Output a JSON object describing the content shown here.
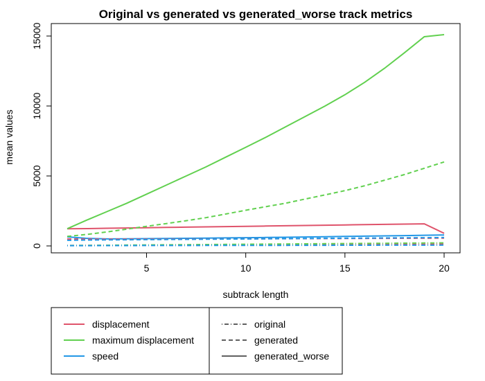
{
  "chart_data": {
    "type": "line",
    "title": "Original vs generated vs generated_worse track metrics",
    "xlabel": "subtrack length",
    "ylabel": "mean values",
    "xlim": [
      1,
      20
    ],
    "ylim": [
      0,
      15000
    ],
    "x_ticks": [
      5,
      10,
      15,
      20
    ],
    "y_ticks": [
      0,
      5000,
      10000,
      15000
    ],
    "grid": false,
    "metric_legend": [
      {
        "label": "displacement",
        "color": "#DF536B"
      },
      {
        "label": "maximum displacement",
        "color": "#61D04F"
      },
      {
        "label": "speed",
        "color": "#2297E6"
      }
    ],
    "source_legend": [
      {
        "label": "original",
        "dash": "dotdash"
      },
      {
        "label": "generated",
        "dash": "dashed"
      },
      {
        "label": "generated_worse",
        "dash": "solid"
      }
    ],
    "x": [
      1,
      2,
      3,
      4,
      5,
      6,
      7,
      8,
      9,
      10,
      11,
      12,
      13,
      14,
      15,
      16,
      17,
      18,
      19,
      20
    ],
    "series": [
      {
        "metric": "displacement",
        "source": "generated_worse",
        "values": [
          1230,
          1240,
          1260,
          1280,
          1300,
          1320,
          1340,
          1360,
          1380,
          1400,
          1420,
          1440,
          1460,
          1480,
          1500,
          1520,
          1540,
          1560,
          1580,
          900
        ]
      },
      {
        "metric": "maximum displacement",
        "source": "generated_worse",
        "values": [
          1230,
          1850,
          2450,
          3050,
          3700,
          4350,
          5000,
          5650,
          6350,
          7050,
          7750,
          8500,
          9250,
          10000,
          10800,
          11700,
          12700,
          13800,
          14950,
          15100
        ]
      },
      {
        "metric": "speed",
        "source": "generated_worse",
        "values": [
          650,
          540,
          500,
          510,
          520,
          530,
          545,
          560,
          575,
          590,
          605,
          620,
          640,
          660,
          680,
          700,
          720,
          740,
          760,
          780
        ]
      },
      {
        "metric": "displacement",
        "source": "generated",
        "values": [
          500,
          490,
          480,
          480,
          480,
          485,
          490,
          495,
          500,
          505,
          510,
          515,
          520,
          525,
          530,
          535,
          540,
          545,
          550,
          560
        ]
      },
      {
        "metric": "maximum displacement",
        "source": "generated",
        "values": [
          680,
          820,
          1000,
          1200,
          1400,
          1600,
          1800,
          2020,
          2280,
          2550,
          2800,
          3050,
          3350,
          3650,
          3950,
          4300,
          4700,
          5100,
          5550,
          6000
        ]
      },
      {
        "metric": "speed",
        "source": "generated",
        "values": [
          400,
          420,
          430,
          440,
          450,
          460,
          470,
          480,
          490,
          500,
          510,
          520,
          530,
          540,
          550,
          560,
          570,
          580,
          590,
          600
        ]
      },
      {
        "metric": "displacement",
        "source": "original",
        "values": [
          30,
          35,
          40,
          45,
          50,
          55,
          60,
          65,
          70,
          75,
          80,
          85,
          90,
          95,
          100,
          105,
          110,
          115,
          120,
          125
        ]
      },
      {
        "metric": "maximum displacement",
        "source": "original",
        "values": [
          30,
          40,
          50,
          60,
          70,
          80,
          90,
          100,
          110,
          120,
          130,
          140,
          150,
          160,
          170,
          180,
          190,
          200,
          210,
          220
        ]
      },
      {
        "metric": "speed",
        "source": "original",
        "values": [
          20,
          22,
          24,
          26,
          28,
          30,
          32,
          34,
          36,
          38,
          40,
          42,
          44,
          46,
          48,
          50,
          52,
          54,
          56,
          58
        ]
      }
    ]
  }
}
